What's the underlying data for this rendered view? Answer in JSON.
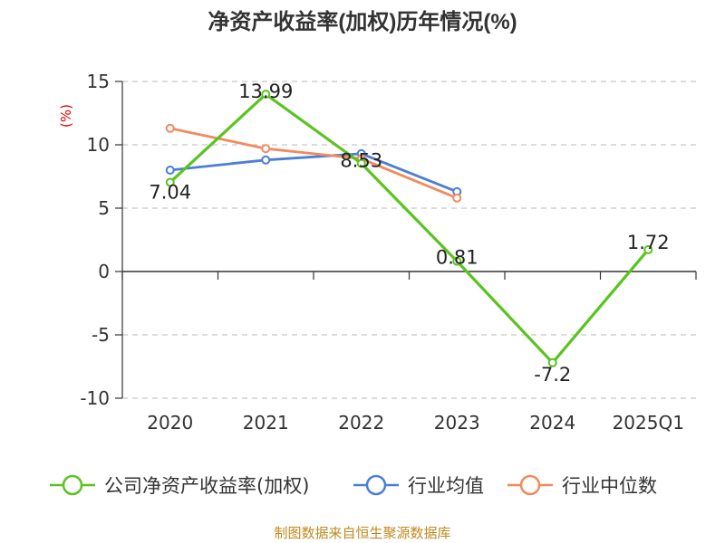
{
  "chart_data": {
    "type": "line",
    "title": "净资产收益率(加权)历年情况(%)",
    "ylabel": "(%)",
    "categories": [
      "2020",
      "2021",
      "2022",
      "2023",
      "2024",
      "2025Q1"
    ],
    "ylim": [
      -10,
      15
    ],
    "yticks": [
      15,
      10,
      5,
      0,
      -5,
      -10
    ],
    "grid": true,
    "legend_position": "bottom",
    "series": [
      {
        "name": "公司净资产收益率(加权)",
        "color": "#5ac41e",
        "values": [
          7.04,
          13.99,
          8.53,
          0.81,
          -7.2,
          1.72
        ],
        "labels": [
          "7.04",
          "13.99",
          "8.53",
          "0.81",
          "-7.2",
          "1.72"
        ]
      },
      {
        "name": "行业均值",
        "color": "#4a7fd4",
        "values": [
          8.0,
          8.8,
          9.3,
          6.3,
          null,
          null
        ]
      },
      {
        "name": "行业中位数",
        "color": "#f28a5c",
        "values": [
          11.3,
          9.7,
          8.9,
          5.8,
          null,
          null
        ]
      }
    ]
  },
  "source_note": "制图数据来自恒生聚源数据库"
}
